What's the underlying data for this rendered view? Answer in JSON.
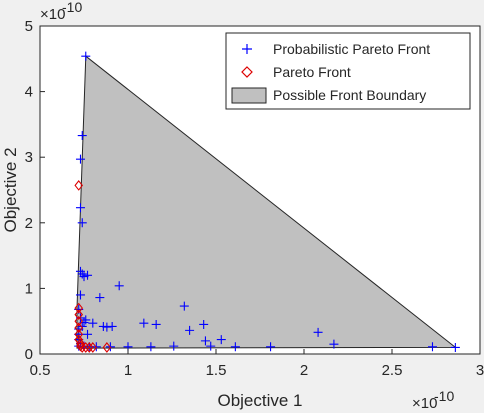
{
  "chart_data": {
    "type": "scatter",
    "xlabel": "Objective 1",
    "ylabel": "Objective 2",
    "x_scale_label": "×10",
    "x_scale_exponent": "-10",
    "y_scale_label": "×10",
    "y_scale_exponent": "-10",
    "xlim": [
      0.5,
      3
    ],
    "ylim": [
      0,
      5
    ],
    "xticks": [
      "0.5",
      "1",
      "1.5",
      "2",
      "2.5",
      "3"
    ],
    "yticks": [
      "0",
      "1",
      "2",
      "3",
      "4",
      "5"
    ],
    "legend_position": "top-right",
    "grid": false,
    "series": [
      {
        "name": "Probabilistic Pareto Front",
        "marker": "plus",
        "color": "#0000ff",
        "points": [
          [
            0.76,
            4.54
          ],
          [
            0.74,
            3.33
          ],
          [
            0.73,
            2.97
          ],
          [
            0.73,
            2.23
          ],
          [
            0.74,
            2.0
          ],
          [
            0.73,
            1.26
          ],
          [
            0.74,
            1.22
          ],
          [
            0.75,
            1.18
          ],
          [
            0.77,
            1.2
          ],
          [
            0.95,
            1.04
          ],
          [
            0.84,
            0.86
          ],
          [
            0.72,
            0.68
          ],
          [
            0.73,
            0.55
          ],
          [
            0.76,
            0.52
          ],
          [
            0.75,
            0.48
          ],
          [
            0.8,
            0.47
          ],
          [
            0.86,
            0.42
          ],
          [
            0.88,
            0.41
          ],
          [
            0.91,
            0.42
          ],
          [
            1.09,
            0.47
          ],
          [
            1.16,
            0.45
          ],
          [
            1.32,
            0.73
          ],
          [
            1.35,
            0.36
          ],
          [
            1.43,
            0.45
          ],
          [
            1.53,
            0.22
          ],
          [
            1.44,
            0.2
          ],
          [
            1.26,
            0.12
          ],
          [
            1.47,
            0.12
          ],
          [
            1.61,
            0.11
          ],
          [
            1.81,
            0.11
          ],
          [
            2.08,
            0.33
          ],
          [
            2.17,
            0.15
          ],
          [
            2.73,
            0.11
          ],
          [
            2.86,
            0.1
          ],
          [
            0.72,
            0.38
          ],
          [
            0.72,
            0.3
          ],
          [
            0.72,
            0.22
          ],
          [
            0.73,
            0.16
          ],
          [
            0.75,
            0.12
          ],
          [
            0.78,
            0.11
          ],
          [
            0.82,
            0.11
          ],
          [
            0.9,
            0.11
          ],
          [
            0.74,
            0.42
          ],
          [
            0.77,
            0.3
          ],
          [
            0.73,
            0.9
          ],
          [
            0.72,
            0.12
          ],
          [
            1.0,
            0.11
          ],
          [
            1.13,
            0.11
          ]
        ]
      },
      {
        "name": "Pareto Front",
        "marker": "diamond",
        "color": "#dd0000",
        "points": [
          [
            0.72,
            2.57
          ],
          [
            0.72,
            0.7
          ],
          [
            0.72,
            0.6
          ],
          [
            0.72,
            0.5
          ],
          [
            0.72,
            0.4
          ],
          [
            0.72,
            0.3
          ],
          [
            0.72,
            0.22
          ],
          [
            0.73,
            0.16
          ],
          [
            0.73,
            0.12
          ],
          [
            0.74,
            0.1
          ],
          [
            0.76,
            0.1
          ],
          [
            0.78,
            0.1
          ],
          [
            0.8,
            0.1
          ],
          [
            0.88,
            0.1
          ]
        ]
      },
      {
        "name": "Possible Front Boundary",
        "type": "area",
        "color": "#c0c0c0",
        "polygon": [
          [
            0.76,
            4.54
          ],
          [
            2.86,
            0.1
          ],
          [
            0.71,
            0.09
          ],
          [
            0.71,
            0.7
          ]
        ]
      }
    ]
  }
}
